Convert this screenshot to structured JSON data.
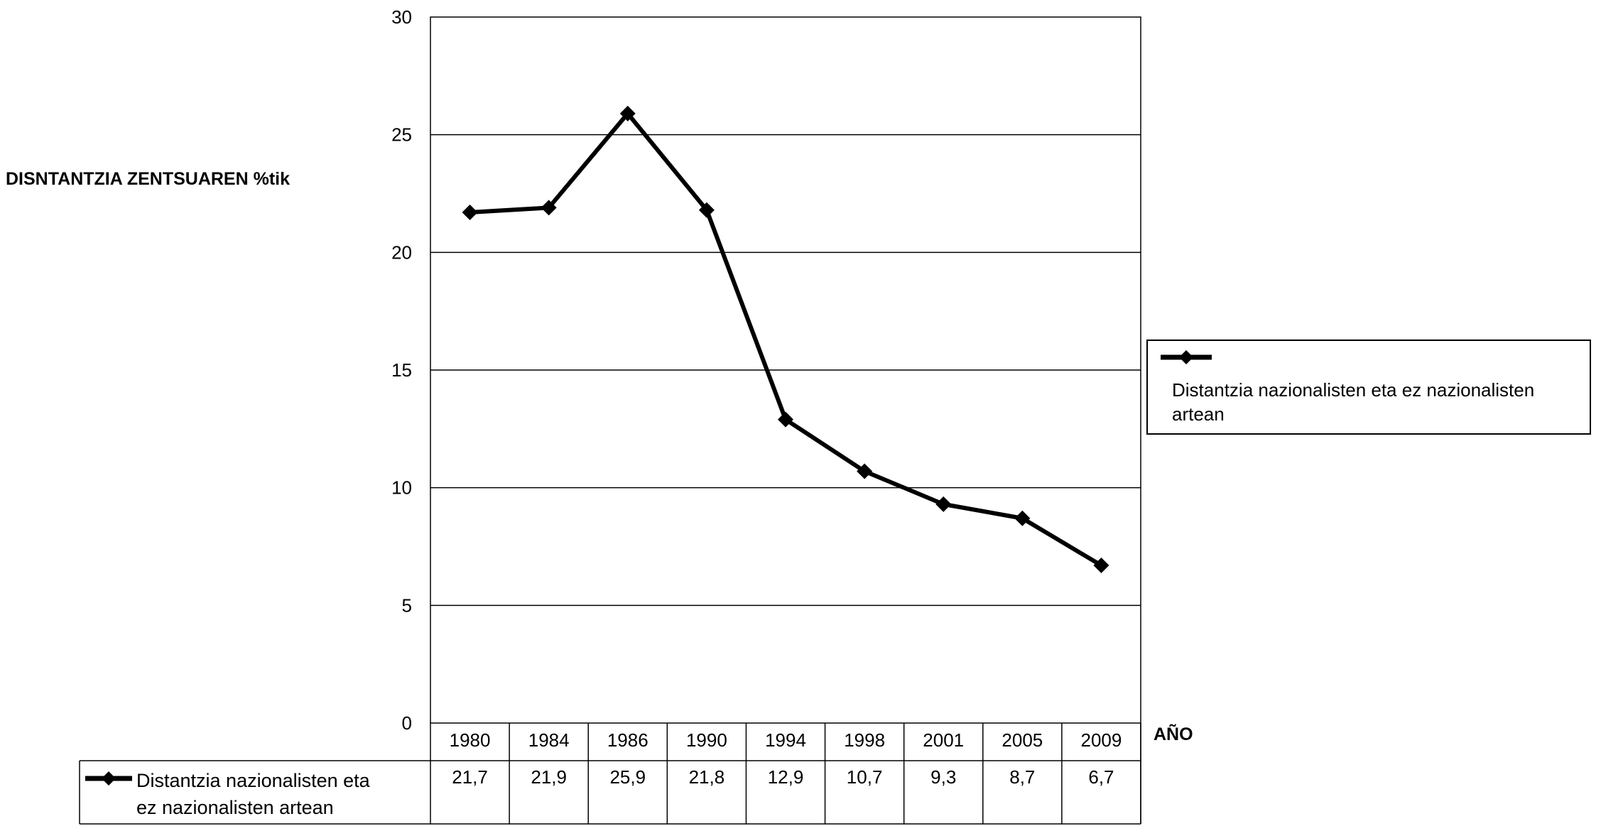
{
  "chart_data": {
    "type": "line",
    "ylabel": "DISNTANTZIA ZENTSUAREN %tik",
    "xlabel": "AÑO",
    "ylim": [
      0,
      30
    ],
    "yticks": [
      "0",
      "5",
      "10",
      "15",
      "20",
      "25",
      "30"
    ],
    "grid": true,
    "legend_placement": "right",
    "categories": [
      "1980",
      "1984",
      "1986",
      "1990",
      "1994",
      "1998",
      "2001",
      "2005",
      "2009"
    ],
    "series": [
      {
        "name": "Distantzia nazionalisten eta ez nazionalisten artean",
        "values": [
          21.7,
          21.9,
          25.9,
          21.8,
          12.9,
          10.7,
          9.3,
          8.7,
          6.7
        ],
        "value_labels": [
          "21,7",
          "21,9",
          "25,9",
          "21,8",
          "12,9",
          "10,7",
          "9,3",
          "8,7",
          "6,7"
        ],
        "table_label_lines": [
          "Distantzia nazionalisten eta",
          "ez nazionalisten artean"
        ],
        "color": "#000000",
        "marker": "diamond"
      }
    ],
    "data_table": true
  }
}
